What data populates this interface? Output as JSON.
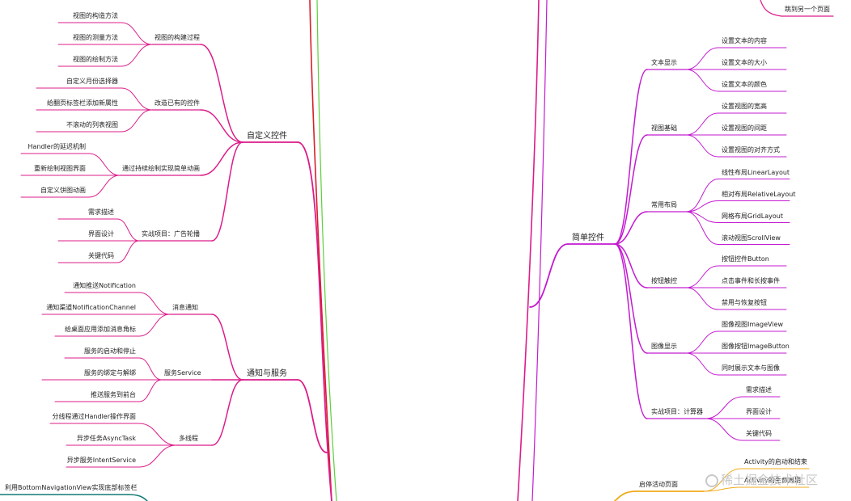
{
  "colors": {
    "magenta": "#dc1c8a",
    "purple": "#c41ad1",
    "orange": "#f0a91a",
    "teal": "#127a77",
    "green": "#5ccf3a",
    "red": "#d81e28"
  },
  "left": {
    "custom_controls": {
      "label": "自定义控件",
      "groups": [
        {
          "label": "视图的构建过程",
          "items": [
            "视图的构造方法",
            "视图的测量方法",
            "视图的绘制方法"
          ]
        },
        {
          "label": "改造已有的控件",
          "items": [
            "自定义月份选择器",
            "给翻页标签栏添加新属性",
            "不滚动的列表视图"
          ]
        },
        {
          "label": "通过持续绘制实现简单动画",
          "items": [
            "Handler的延迟机制",
            "重新绘制视图界面",
            "自定义饼图动画"
          ]
        },
        {
          "label": "实战项目：广告轮播",
          "items": [
            "需求描述",
            "界面设计",
            "关键代码"
          ]
        }
      ]
    },
    "notify_service": {
      "label": "通知与服务",
      "groups": [
        {
          "label": "消息通知",
          "items": [
            "通知推送Notification",
            "通知渠道NotificationChannel",
            "给桌面应用添加消息角标"
          ]
        },
        {
          "label": "服务Service",
          "items": [
            "服务的启动和停止",
            "服务的绑定与解绑",
            "推送服务到前台"
          ]
        },
        {
          "label": "多线程",
          "items": [
            "分线程通过Handler操作界面",
            "异步任务AsyncTask",
            "异步服务IntentService"
          ]
        }
      ]
    },
    "bottom_item": "利用BottomNavigationView实现底部标签栏"
  },
  "right": {
    "top_item": "跳到另一个页面",
    "simple_controls": {
      "label": "简单控件",
      "groups": [
        {
          "label": "文本显示",
          "items": [
            "设置文本的内容",
            "设置文本的大小",
            "设置文本的颜色"
          ]
        },
        {
          "label": "视图基础",
          "items": [
            "设置视图的宽高",
            "设置视图的间距",
            "设置视图的对齐方式"
          ]
        },
        {
          "label": "常用布局",
          "items": [
            "线性布局LinearLayout",
            "相对布局RelativeLayout",
            "网格布局GridLayout",
            "滚动视图ScrollView"
          ]
        },
        {
          "label": "按钮触控",
          "items": [
            "按钮控件Button",
            "点击事件和长按事件",
            "禁用与恢复按钮"
          ]
        },
        {
          "label": "图像显示",
          "items": [
            "图像视图ImageView",
            "图像按钮ImageButton",
            "同时展示文本与图像"
          ]
        },
        {
          "label": "实战项目：计算器",
          "items": [
            "需求描述",
            "界面设计",
            "关键代码"
          ]
        }
      ]
    },
    "activity": {
      "label": "启停活动页面",
      "items": [
        "Activity的启动和结束",
        "Activity的生命周期"
      ]
    }
  },
  "watermark": "稀土掘金技术社区"
}
